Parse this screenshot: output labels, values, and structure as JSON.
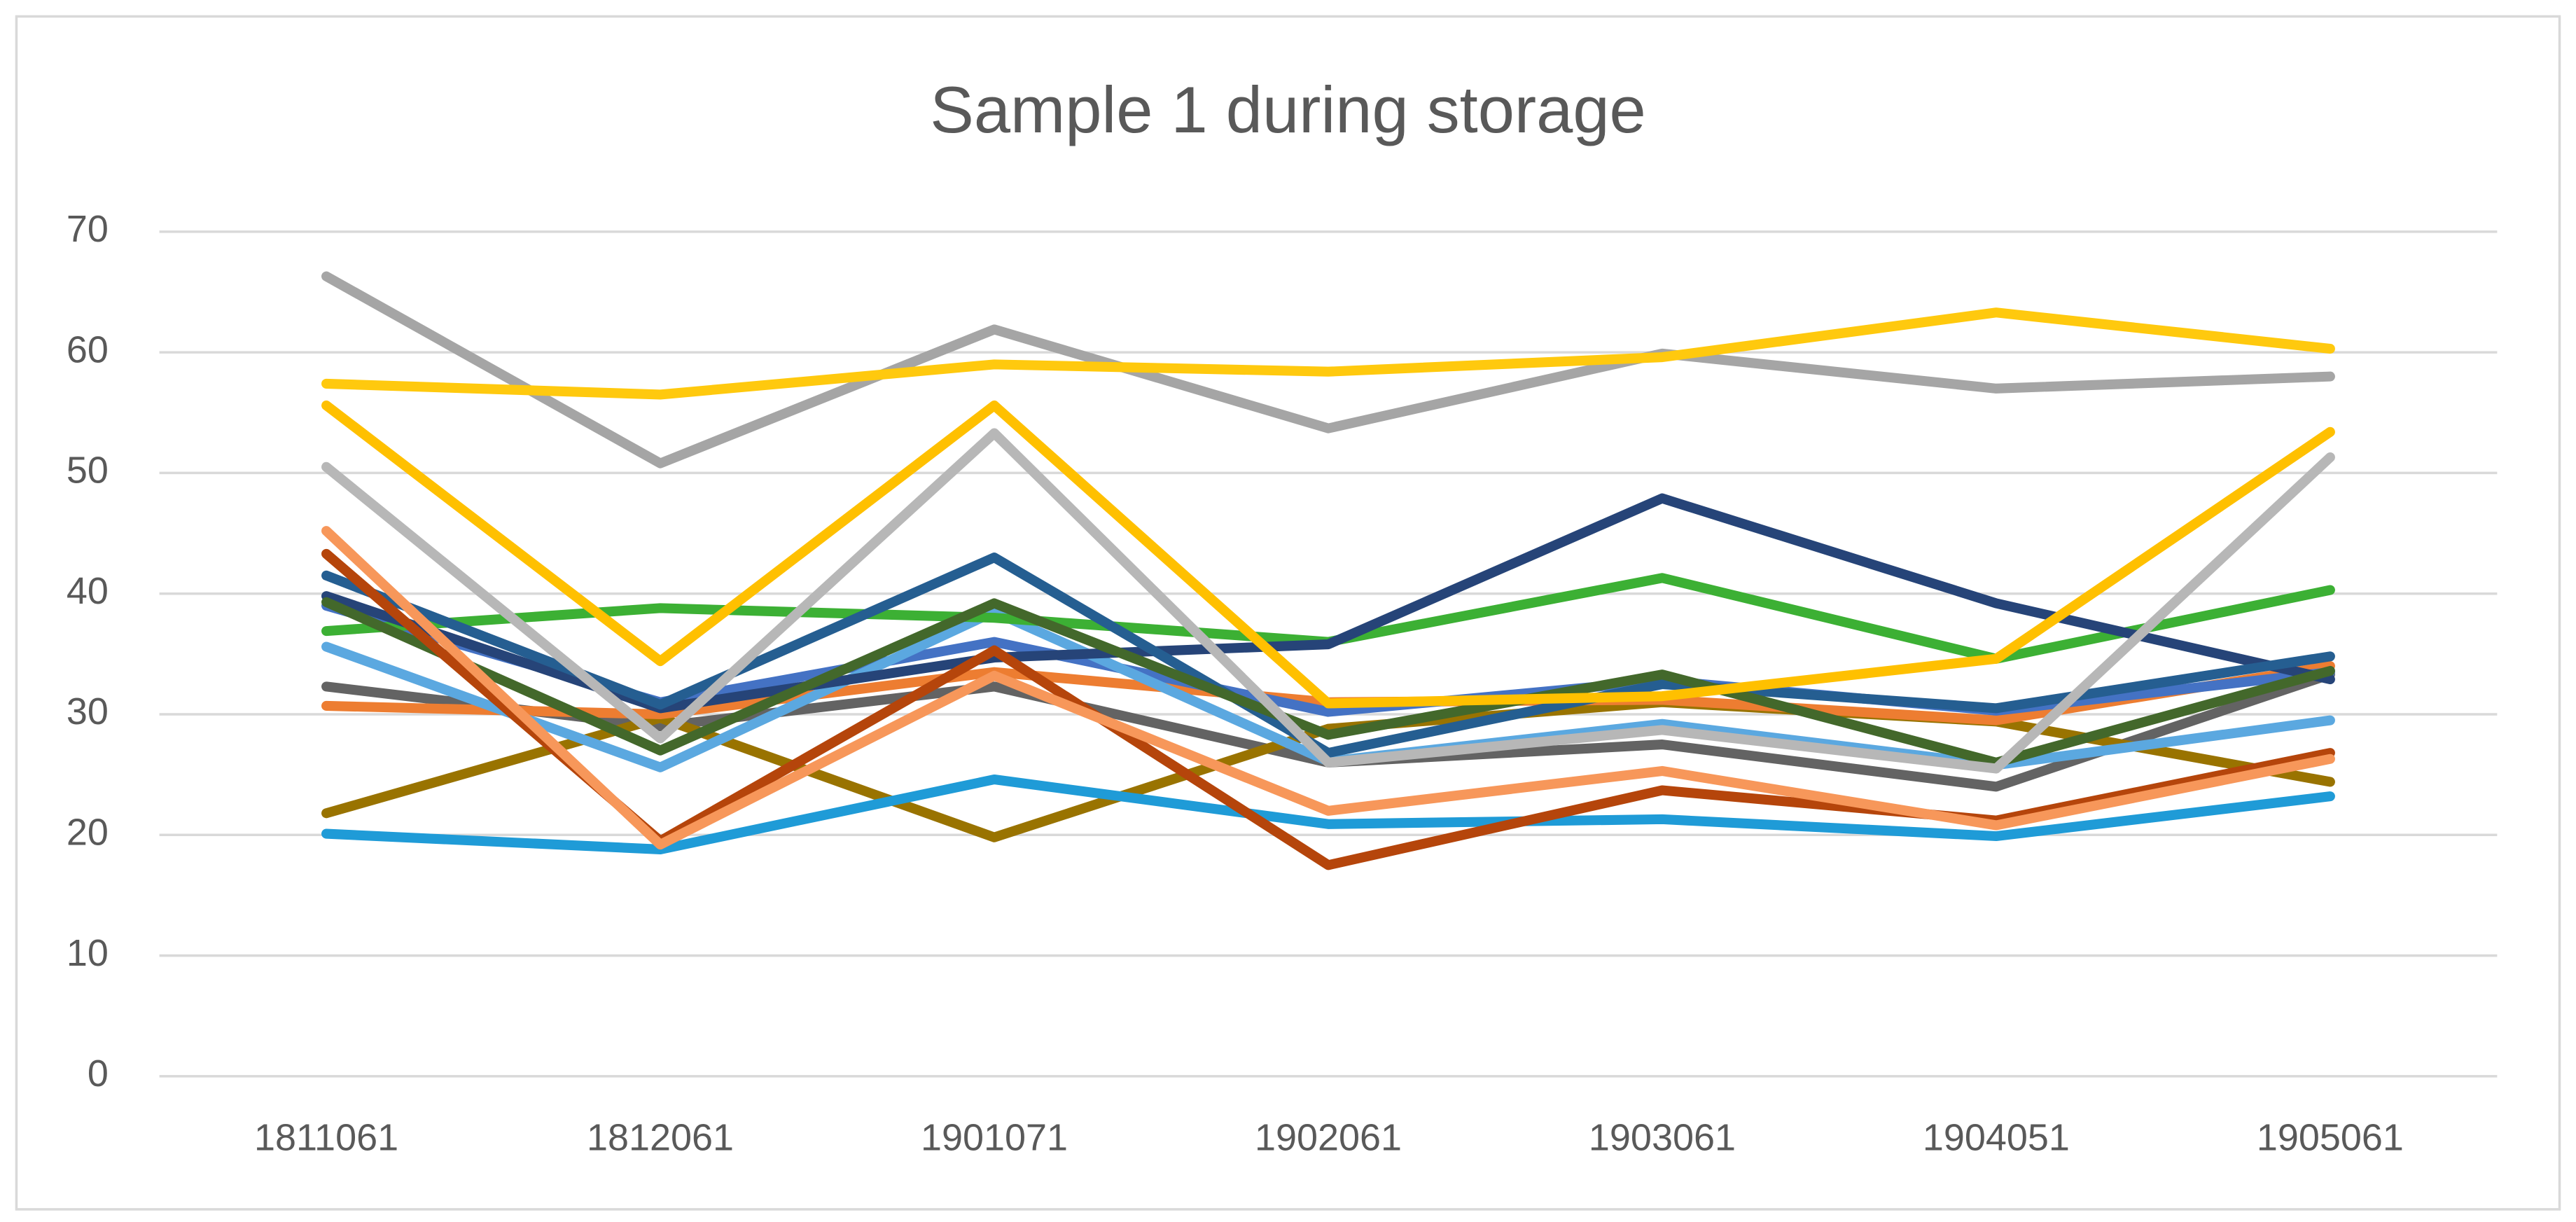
{
  "chart_data": {
    "type": "line",
    "title": "Sample 1 during storage",
    "categories": [
      "1811061",
      "1812061",
      "1901071",
      "1902061",
      "1903061",
      "1904051",
      "1905061"
    ],
    "ylim": [
      0,
      70
    ],
    "yticks": [
      0,
      10,
      20,
      30,
      40,
      50,
      60,
      70
    ],
    "grid": true,
    "series": [
      {
        "color": "#636363",
        "values": [
          32.3,
          29,
          32.3,
          26,
          27.5,
          24,
          33.3
        ]
      },
      {
        "color": "#997300",
        "values": [
          21.8,
          29.7,
          19.8,
          28.8,
          31,
          29.4,
          24.4
        ]
      },
      {
        "color": "#ED7D31",
        "values": [
          30.7,
          30,
          33.5,
          31,
          31.2,
          29.5,
          34
        ]
      },
      {
        "color": "#4472C4",
        "values": [
          39,
          31,
          36,
          30.2,
          32.8,
          30.3,
          33.5
        ]
      },
      {
        "color": "#5BA8E0",
        "values": [
          35.6,
          25.6,
          38.5,
          26.1,
          29.2,
          25.8,
          29.5
        ]
      },
      {
        "color": "#1F9BD7",
        "values": [
          20.1,
          18.8,
          24.6,
          20.9,
          21.3,
          19.9,
          23.2
        ]
      },
      {
        "color": "#3CB034",
        "values": [
          36.9,
          38.8,
          38,
          36,
          41.3,
          34.6,
          40.3
        ]
      },
      {
        "color": "#264478",
        "values": [
          39.8,
          30.5,
          34.7,
          35.8,
          47.9,
          39.2,
          32.9
        ]
      },
      {
        "color": "#255E91",
        "values": [
          41.5,
          30.8,
          43,
          26.8,
          32.5,
          30.5,
          34.8
        ]
      },
      {
        "color": "#43682B",
        "values": [
          39.3,
          27,
          39.2,
          28.3,
          33.3,
          26,
          33.6
        ]
      },
      {
        "color": "#B5450B",
        "values": [
          43.3,
          19.5,
          35.3,
          17.5,
          23.7,
          21.2,
          26.8
        ]
      },
      {
        "color": "#F7975A",
        "values": [
          45.2,
          19.2,
          33.2,
          22,
          25.3,
          20.8,
          26.3
        ]
      },
      {
        "color": "#B7B7B7",
        "values": [
          50.5,
          28,
          53.3,
          26,
          28.7,
          25.5,
          51.3
        ]
      },
      {
        "color": "#FFC000",
        "values": [
          55.6,
          34.4,
          55.6,
          30.9,
          31.5,
          34.6,
          53.4
        ]
      },
      {
        "color": "#A5A5A5",
        "values": [
          66.3,
          50.8,
          61.9,
          53.7,
          59.9,
          57,
          58
        ]
      },
      {
        "color": "#FFC90E",
        "values": [
          57.4,
          56.5,
          59,
          58.4,
          59.6,
          63.3,
          60.3
        ]
      }
    ]
  }
}
